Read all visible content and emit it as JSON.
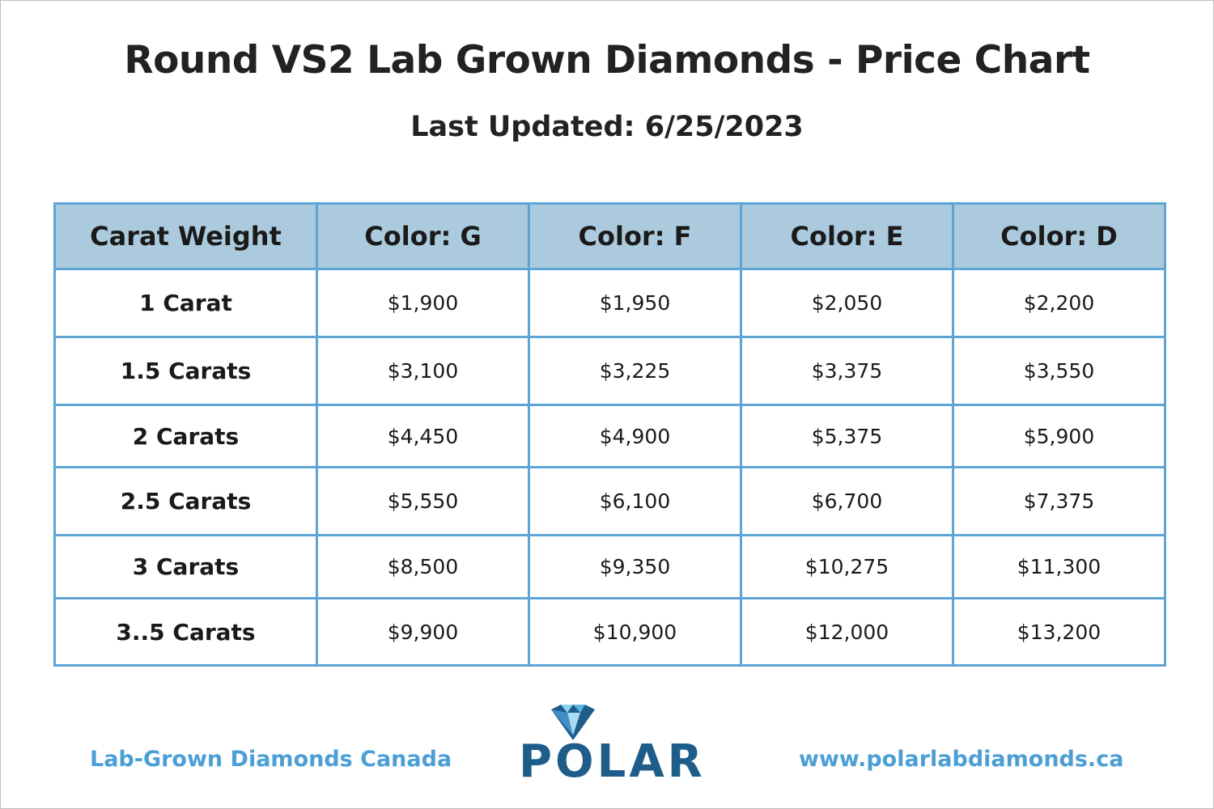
{
  "header": {
    "title": "Round VS2 Lab Grown Diamonds - Price Chart",
    "subtitle": "Last Updated: 6/25/2023"
  },
  "table": {
    "columns": [
      "Carat Weight",
      "Color: G",
      "Color: F",
      "Color: E",
      "Color: D"
    ],
    "rows": [
      [
        "1 Carat",
        "$1,900",
        "$1,950",
        "$2,050",
        "$2,200"
      ],
      [
        "1.5 Carats",
        "$3,100",
        "$3,225",
        "$3,375",
        "$3,550"
      ],
      [
        "2 Carats",
        "$4,450",
        "$4,900",
        "$5,375",
        "$5,900"
      ],
      [
        "2.5 Carats",
        "$5,550",
        "$6,100",
        "$6,700",
        "$7,375"
      ],
      [
        "3 Carats",
        "$8,500",
        "$9,350",
        "$10,275",
        "$11,300"
      ],
      [
        "3..5 Carats",
        "$9,900",
        "$10,900",
        "$12,000",
        "$13,200"
      ]
    ]
  },
  "footer": {
    "left": "Lab-Grown Diamonds Canada",
    "logo": "POLAR",
    "right": "www.polarlabdiamonds.ca"
  }
}
